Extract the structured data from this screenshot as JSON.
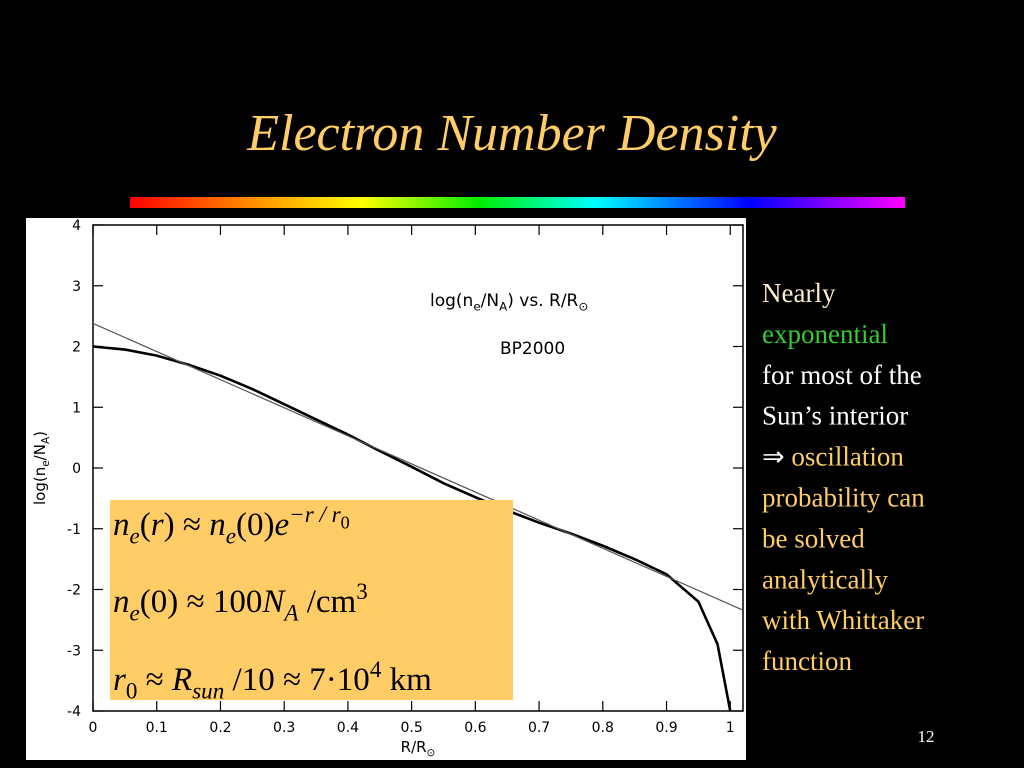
{
  "title": "Electron Number Density",
  "chart_data": {
    "type": "line",
    "xlabel": [
      {
        "text": "R/R"
      },
      {
        "text": "⊙",
        "shift": "sub"
      }
    ],
    "ylabel": [
      {
        "text": "log(n"
      },
      {
        "text": "e",
        "shift": "sub"
      },
      {
        "text": "/N"
      },
      {
        "text": "A",
        "shift": "sub"
      },
      {
        "text": ")"
      }
    ],
    "annotations": [
      [
        {
          "text": "log(n"
        },
        {
          "text": "e",
          "shift": "sub"
        },
        {
          "text": "/N"
        },
        {
          "text": "A",
          "shift": "sub"
        },
        {
          "text": ")  vs.  R/R"
        },
        {
          "text": "⊙",
          "shift": "sub"
        }
      ],
      [
        {
          "text": "BP2000"
        }
      ]
    ],
    "xlim": [
      0,
      1.02
    ],
    "ylim": [
      -4,
      4
    ],
    "xticks": [
      0,
      0.1,
      0.2,
      0.3,
      0.4,
      0.5,
      0.6,
      0.7,
      0.8,
      0.9,
      1
    ],
    "yticks": [
      -4,
      -3,
      -2,
      -1,
      0,
      1,
      2,
      3,
      4
    ],
    "series": [
      {
        "color": "#000000",
        "width": 2.6,
        "x": [
          0,
          0.05,
          0.1,
          0.15,
          0.2,
          0.25,
          0.3,
          0.35,
          0.4,
          0.45,
          0.5,
          0.55,
          0.6,
          0.65,
          0.7,
          0.75,
          0.8,
          0.85,
          0.9,
          0.95,
          0.98,
          1
        ],
        "values": [
          2.0,
          1.95,
          1.85,
          1.7,
          1.52,
          1.3,
          1.05,
          0.8,
          0.55,
          0.28,
          0.02,
          -0.25,
          -0.48,
          -0.7,
          -0.9,
          -1.08,
          -1.28,
          -1.5,
          -1.75,
          -2.2,
          -2.9,
          -4.0
        ]
      },
      {
        "color": "#555555",
        "width": 1.2,
        "x": [
          0,
          1.02
        ],
        "values": [
          2.38,
          -2.34
        ]
      }
    ]
  },
  "formulas": [
    [
      {
        "text": "n",
        "it": true
      },
      {
        "text": "e",
        "it": true,
        "shift": "sub"
      },
      {
        "text": "(",
        "shift": "base"
      },
      {
        "text": "r",
        "it": true
      },
      {
        "text": ") ≈ "
      },
      {
        "text": "n",
        "it": true
      },
      {
        "text": "e",
        "it": true,
        "shift": "sub"
      },
      {
        "text": "(0)",
        "shift": "base"
      },
      {
        "text": "e",
        "it": true
      },
      {
        "text": "−r / r",
        "it": true,
        "shift": "sup"
      },
      {
        "text": "0",
        "shift": "supsub"
      }
    ],
    [
      {
        "text": "n",
        "it": true
      },
      {
        "text": "e",
        "it": true,
        "shift": "sub"
      },
      {
        "text": "(0) ≈ 100",
        "shift": "base"
      },
      {
        "text": "N",
        "it": true
      },
      {
        "text": "A",
        "it": true,
        "shift": "sub"
      },
      {
        "text": " /cm",
        "shift": "base"
      },
      {
        "text": "3",
        "shift": "sup"
      }
    ],
    [
      {
        "text": "r",
        "it": true
      },
      {
        "text": "0",
        "shift": "sub"
      },
      {
        "text": " ≈ ",
        "shift": "base"
      },
      {
        "text": "R",
        "it": true
      },
      {
        "text": "sun",
        "it": true,
        "shift": "sub"
      },
      {
        "text": " /10 ≈ 7·10",
        "shift": "base"
      },
      {
        "text": "4",
        "shift": "sup"
      },
      {
        "text": " km",
        "shift": "base"
      }
    ]
  ],
  "sidebar": [
    [
      {
        "text": "Nearly",
        "color": "#ffeecc"
      }
    ],
    [
      {
        "text": "exponential",
        "color": "#33cc33"
      }
    ],
    [
      {
        "text": "for most of the",
        "color": "#ffffff"
      }
    ],
    [
      {
        "text": "Sun’s interior",
        "color": "#ffffff"
      }
    ],
    [
      {
        "text": "⇒ ",
        "color": "#ffffff"
      },
      {
        "text": "oscillation",
        "color": "#ffcc66"
      }
    ],
    [
      {
        "text": "probability can",
        "color": "#ffcc66"
      }
    ],
    [
      {
        "text": "be solved",
        "color": "#ffcc66"
      }
    ],
    [
      {
        "text": "analytically",
        "color": "#ffcc66"
      }
    ],
    [
      {
        "text": "with Whittaker",
        "color": "#ffcc66"
      }
    ],
    [
      {
        "text": "function",
        "color": "#ffcc66"
      }
    ]
  ],
  "page_number": "12"
}
